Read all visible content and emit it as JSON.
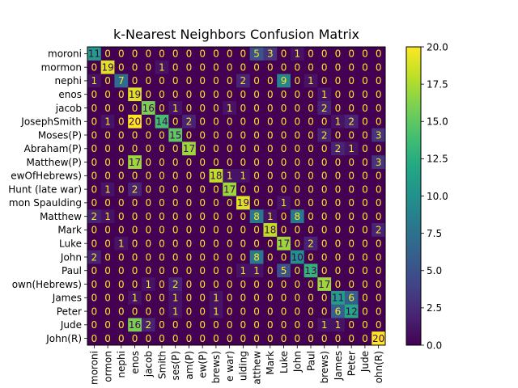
{
  "chart_data": {
    "type": "heatmap",
    "title": "k-Nearest Neighbors Confusion Matrix",
    "xlabel": "",
    "ylabel": "",
    "y_labels": [
      "moroni",
      "mormon",
      "nephi",
      "enos",
      "jacob",
      "JosephSmith",
      "Moses(P)",
      "Abraham(P)",
      "Matthew(P)",
      "ewOfHebrews)",
      "Hunt (late war)",
      "mon Spaulding",
      "Matthew",
      "Mark",
      "Luke",
      "John",
      "Paul",
      "own(Hebrews)",
      "James",
      "Peter",
      "Jude",
      "John(R)"
    ],
    "x_labels": [
      "moroni",
      "ormon",
      "nephi",
      "enos",
      "jacob",
      "Smith",
      "ses(P)",
      "am(P)",
      "ew(P)",
      "brews)",
      "e war)",
      "ulding",
      "atthew",
      "Mark",
      "Luke",
      "John",
      "Paul",
      "brews)",
      "James",
      "Peter",
      "Jude",
      "ohn(R)"
    ],
    "matrix": [
      [
        11,
        0,
        0,
        0,
        0,
        0,
        0,
        0,
        0,
        0,
        0,
        0,
        5,
        3,
        0,
        1,
        0,
        0,
        0,
        0,
        0,
        0
      ],
      [
        0,
        19,
        0,
        0,
        0,
        1,
        0,
        0,
        0,
        0,
        0,
        0,
        0,
        0,
        0,
        0,
        0,
        0,
        0,
        0,
        0,
        0
      ],
      [
        1,
        0,
        7,
        0,
        0,
        0,
        0,
        0,
        0,
        0,
        0,
        2,
        0,
        0,
        9,
        0,
        1,
        0,
        0,
        0,
        0,
        0
      ],
      [
        0,
        0,
        0,
        19,
        0,
        0,
        0,
        0,
        0,
        0,
        0,
        0,
        0,
        0,
        0,
        0,
        0,
        1,
        0,
        0,
        0,
        0
      ],
      [
        0,
        0,
        0,
        0,
        16,
        0,
        1,
        0,
        0,
        0,
        1,
        0,
        0,
        0,
        0,
        0,
        0,
        2,
        0,
        0,
        0,
        0
      ],
      [
        0,
        1,
        0,
        20,
        0,
        14,
        0,
        2,
        0,
        0,
        0,
        0,
        0,
        0,
        0,
        0,
        0,
        0,
        1,
        2,
        0,
        0
      ],
      [
        0,
        0,
        0,
        0,
        0,
        0,
        15,
        0,
        0,
        0,
        0,
        0,
        0,
        0,
        0,
        0,
        0,
        2,
        0,
        0,
        0,
        3
      ],
      [
        0,
        0,
        0,
        0,
        0,
        0,
        0,
        17,
        0,
        0,
        0,
        0,
        0,
        0,
        0,
        0,
        0,
        0,
        2,
        1,
        0,
        0
      ],
      [
        0,
        0,
        0,
        17,
        0,
        0,
        0,
        0,
        0,
        0,
        0,
        0,
        0,
        0,
        0,
        0,
        0,
        0,
        0,
        0,
        0,
        3
      ],
      [
        0,
        0,
        0,
        0,
        0,
        0,
        0,
        0,
        0,
        18,
        1,
        1,
        0,
        0,
        0,
        0,
        0,
        0,
        0,
        0,
        0,
        0
      ],
      [
        0,
        1,
        0,
        2,
        0,
        0,
        0,
        0,
        0,
        0,
        17,
        0,
        0,
        0,
        0,
        0,
        0,
        0,
        0,
        0,
        0,
        0
      ],
      [
        0,
        0,
        0,
        0,
        0,
        0,
        0,
        0,
        0,
        0,
        0,
        19,
        0,
        0,
        1,
        0,
        0,
        0,
        0,
        0,
        0,
        0
      ],
      [
        2,
        1,
        0,
        0,
        0,
        0,
        0,
        0,
        0,
        0,
        0,
        0,
        8,
        1,
        0,
        8,
        0,
        0,
        0,
        0,
        0,
        0
      ],
      [
        0,
        0,
        0,
        0,
        0,
        0,
        0,
        0,
        0,
        0,
        0,
        0,
        0,
        18,
        0,
        0,
        0,
        0,
        0,
        0,
        0,
        2
      ],
      [
        0,
        0,
        1,
        0,
        0,
        0,
        0,
        0,
        0,
        0,
        0,
        0,
        0,
        0,
        17,
        0,
        2,
        0,
        0,
        0,
        0,
        0
      ],
      [
        2,
        0,
        0,
        0,
        0,
        0,
        0,
        0,
        0,
        0,
        0,
        0,
        8,
        0,
        0,
        10,
        0,
        0,
        0,
        0,
        0,
        0
      ],
      [
        0,
        0,
        0,
        0,
        0,
        0,
        0,
        0,
        0,
        0,
        0,
        1,
        1,
        0,
        5,
        0,
        13,
        0,
        0,
        0,
        0,
        0
      ],
      [
        0,
        0,
        0,
        0,
        1,
        0,
        2,
        0,
        0,
        0,
        0,
        0,
        0,
        0,
        0,
        0,
        0,
        17,
        0,
        0,
        0,
        0
      ],
      [
        0,
        0,
        0,
        1,
        0,
        0,
        1,
        0,
        0,
        1,
        0,
        0,
        0,
        0,
        0,
        0,
        0,
        0,
        11,
        6,
        0,
        0
      ],
      [
        0,
        0,
        0,
        0,
        0,
        0,
        1,
        0,
        0,
        1,
        0,
        0,
        0,
        0,
        0,
        0,
        0,
        0,
        6,
        12,
        0,
        0
      ],
      [
        0,
        0,
        0,
        16,
        2,
        0,
        0,
        0,
        0,
        0,
        0,
        0,
        0,
        0,
        0,
        0,
        0,
        1,
        1,
        0,
        0,
        0
      ],
      [
        0,
        0,
        0,
        0,
        0,
        0,
        0,
        0,
        0,
        0,
        0,
        0,
        0,
        0,
        0,
        0,
        0,
        0,
        0,
        0,
        0,
        20
      ]
    ],
    "colormap": "viridis",
    "vmin": 0,
    "vmax": 20,
    "colorbar_ticks": [
      "0.0",
      "2.5",
      "5.0",
      "7.5",
      "10.0",
      "12.5",
      "15.0",
      "17.5",
      "20.0"
    ],
    "grid": false,
    "legend": "none"
  }
}
